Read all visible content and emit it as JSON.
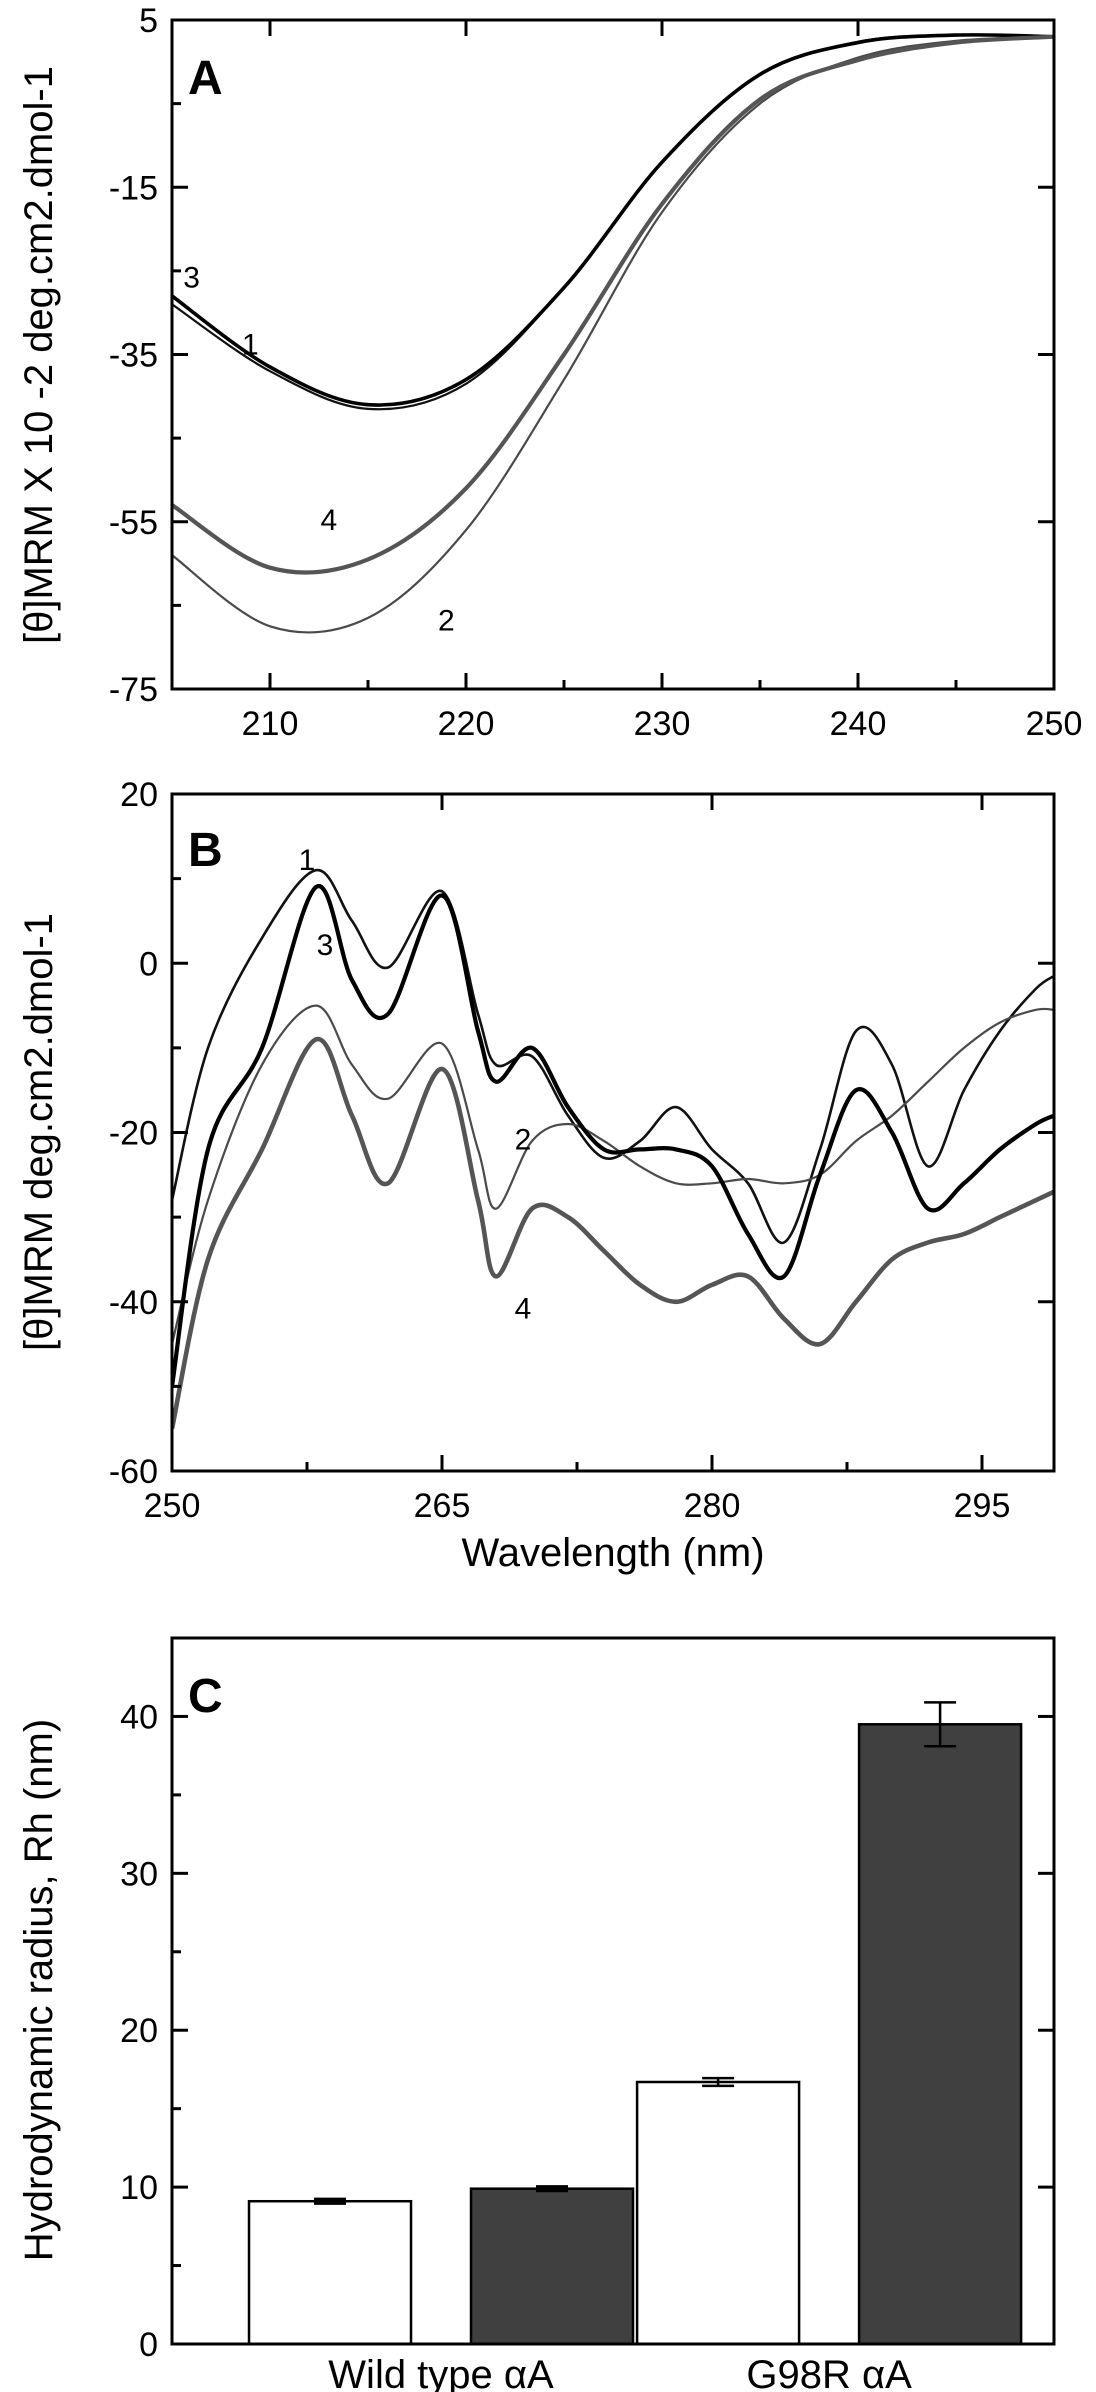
{
  "chart_data": [
    {
      "panel": "A",
      "type": "line",
      "xlabel": "",
      "ylabel": "[θ]MRM X 10 -2 deg.cm2.dmol-1",
      "xlim": [
        205,
        250
      ],
      "ylim": [
        -75,
        5
      ],
      "xticks": [
        "210",
        "220",
        "230",
        "240",
        "250"
      ],
      "yticks": [
        "5",
        "-15",
        "-35",
        "-55",
        "-75"
      ],
      "series": [
        {
          "name": "1",
          "color": "#111111",
          "x": [
            205,
            210,
            215,
            220,
            225,
            230,
            235,
            240,
            245,
            250
          ],
          "y": [
            -29,
            -37,
            -41.5,
            -38.5,
            -27,
            -12,
            -1.5,
            2.4,
            3.2,
            3.0
          ]
        },
        {
          "name": "2",
          "color": "#4a4a4a",
          "x": [
            205,
            210,
            215,
            220,
            225,
            230,
            235,
            240,
            245,
            250
          ],
          "y": [
            -59,
            -67.5,
            -66.5,
            -56,
            -38,
            -18,
            -5,
            0.5,
            2.5,
            3.0
          ]
        },
        {
          "name": "3",
          "color": "#000000",
          "x": [
            205,
            210,
            215,
            220,
            225,
            230,
            235,
            240,
            245,
            250
          ],
          "y": [
            -28,
            -36.5,
            -41,
            -38,
            -27,
            -12,
            -1.5,
            2.3,
            3.2,
            3.0
          ]
        },
        {
          "name": "4",
          "color": "#555555",
          "x": [
            205,
            210,
            215,
            220,
            225,
            230,
            235,
            240,
            245,
            250
          ],
          "y": [
            -53,
            -60.5,
            -59.5,
            -51,
            -35,
            -17,
            -4.5,
            0.2,
            2.3,
            3.0
          ]
        }
      ],
      "curve_labels": [
        {
          "text": "3",
          "x": 206,
          "y": -27
        },
        {
          "text": "1",
          "x": 209,
          "y": -35
        },
        {
          "text": "4",
          "x": 213,
          "y": -56
        },
        {
          "text": "2",
          "x": 219,
          "y": -68
        }
      ]
    },
    {
      "panel": "B",
      "type": "line",
      "xlabel": "Wavelength (nm)",
      "ylabel": "[θ]MRM deg.cm2.dmol-1",
      "xlim": [
        250,
        299
      ],
      "ylim": [
        -60,
        20
      ],
      "xticks": [
        "250",
        "265",
        "280",
        "295"
      ],
      "yticks": [
        "20",
        "0",
        "-20",
        "-40",
        "-60"
      ],
      "series": [
        {
          "name": "1",
          "color": "#111111",
          "x": [
            250,
            252,
            255,
            258,
            260,
            262,
            265,
            267,
            268,
            270,
            272,
            274,
            276,
            278,
            280,
            282,
            284,
            286,
            288,
            290,
            292,
            294,
            296,
            298,
            299
          ],
          "y": [
            -28,
            -10,
            3,
            11,
            5,
            -0.5,
            8.5,
            -6,
            -12,
            -11,
            -18,
            -23,
            -21,
            -17,
            -22,
            -26,
            -33,
            -22,
            -8,
            -12,
            -24,
            -15,
            -8,
            -3,
            -1.5
          ]
        },
        {
          "name": "2",
          "color": "#4a4a4a",
          "x": [
            250,
            252,
            255,
            258,
            260,
            262,
            265,
            267,
            268,
            270,
            272,
            274,
            276,
            278,
            280,
            282,
            284,
            286,
            288,
            290,
            292,
            294,
            296,
            298,
            299
          ],
          "y": [
            -45,
            -28,
            -12,
            -5,
            -12,
            -16,
            -9.5,
            -22,
            -29,
            -21,
            -19,
            -21,
            -24,
            -26,
            -26,
            -25.5,
            -26,
            -25,
            -21,
            -18,
            -14,
            -10,
            -7,
            -5.5,
            -5.5
          ]
        },
        {
          "name": "3",
          "color": "#000000",
          "x": [
            250,
            252,
            255,
            258,
            260,
            262,
            265,
            267,
            268,
            270,
            272,
            274,
            276,
            278,
            280,
            282,
            284,
            286,
            288,
            290,
            292,
            294,
            296,
            298,
            299
          ],
          "y": [
            -50,
            -22,
            -10,
            9,
            -2,
            -6,
            8,
            -8,
            -14,
            -10,
            -17,
            -22,
            -22,
            -22,
            -24,
            -32,
            -37,
            -25,
            -15,
            -20,
            -29,
            -26,
            -22,
            -19,
            -18
          ]
        },
        {
          "name": "4",
          "color": "#555555",
          "x": [
            250,
            252,
            255,
            258,
            260,
            262,
            265,
            267,
            268,
            270,
            272,
            274,
            276,
            278,
            280,
            282,
            284,
            286,
            288,
            290,
            292,
            294,
            296,
            298,
            299
          ],
          "y": [
            -55,
            -35,
            -22,
            -9,
            -18,
            -26,
            -12.5,
            -28,
            -37,
            -29,
            -30,
            -34,
            -38,
            -40,
            -38,
            -37,
            -42,
            -45,
            -40,
            -35,
            -33,
            -32,
            -30,
            -28,
            -27
          ]
        }
      ],
      "curve_labels": [
        {
          "text": "1",
          "x": 257.5,
          "y": 11
        },
        {
          "text": "3",
          "x": 258.5,
          "y": 1
        },
        {
          "text": "2",
          "x": 269.5,
          "y": -22
        },
        {
          "text": "4",
          "x": 269.5,
          "y": -42
        }
      ]
    },
    {
      "panel": "C",
      "type": "bar",
      "xlabel": "",
      "ylabel": "Hydrodynamic radius, Rh (nm)",
      "ylim": [
        0,
        45
      ],
      "yticks": [
        "0",
        "10",
        "20",
        "30",
        "40"
      ],
      "categories": [
        "Wild type αA",
        "G98R αA"
      ],
      "series": [
        {
          "color": "#ffffff",
          "values": [
            9.1,
            16.7
          ],
          "errors": [
            0.15,
            0.25
          ]
        },
        {
          "color": "#404040",
          "values": [
            9.9,
            39.5
          ],
          "errors": [
            0.15,
            1.4
          ]
        }
      ]
    }
  ]
}
